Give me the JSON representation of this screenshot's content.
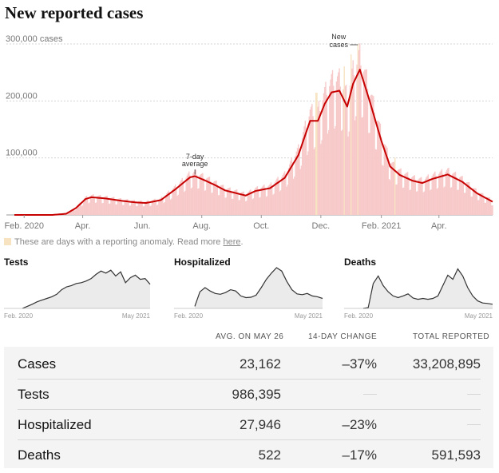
{
  "title": "New reported cases",
  "chart_data": [
    {
      "type": "bar",
      "title": "New reported cases",
      "y_unit_label": "300,000 cases",
      "ylim": [
        0,
        300000
      ],
      "y_ticks": [
        {
          "value": 300000,
          "label": "300,000 cases"
        },
        {
          "value": 200000,
          "label": "200,000"
        },
        {
          "value": 100000,
          "label": "100,000"
        }
      ],
      "x_ticks": [
        "Feb. 2020",
        "Apr.",
        "Jun.",
        "Aug.",
        "Oct.",
        "Dec.",
        "Feb. 2021",
        "Apr."
      ],
      "grid": "horizontal dashed",
      "bar_series_name": "New cases",
      "line_series_name": "7-day average",
      "annotations": {
        "bars": "New cases",
        "line": "7-day average"
      },
      "bar_color": "#f7c9c9",
      "anomaly_color": "#f7e3c0",
      "line_color": "#c70000",
      "seven_day_average": [
        {
          "x": "2020-01-22",
          "y": 0
        },
        {
          "x": "2020-03-01",
          "y": 50
        },
        {
          "x": "2020-03-15",
          "y": 2000
        },
        {
          "x": "2020-03-25",
          "y": 12000
        },
        {
          "x": "2020-04-04",
          "y": 28000
        },
        {
          "x": "2020-04-10",
          "y": 31000
        },
        {
          "x": "2020-04-24",
          "y": 29000
        },
        {
          "x": "2020-05-10",
          "y": 25000
        },
        {
          "x": "2020-05-25",
          "y": 22000
        },
        {
          "x": "2020-06-05",
          "y": 21000
        },
        {
          "x": "2020-06-20",
          "y": 26000
        },
        {
          "x": "2020-07-05",
          "y": 45000
        },
        {
          "x": "2020-07-20",
          "y": 66000
        },
        {
          "x": "2020-07-25",
          "y": 68000
        },
        {
          "x": "2020-08-05",
          "y": 60000
        },
        {
          "x": "2020-08-15",
          "y": 52000
        },
        {
          "x": "2020-08-25",
          "y": 43000
        },
        {
          "x": "2020-09-08",
          "y": 37000
        },
        {
          "x": "2020-09-15",
          "y": 34000
        },
        {
          "x": "2020-09-25",
          "y": 42000
        },
        {
          "x": "2020-10-10",
          "y": 47000
        },
        {
          "x": "2020-10-25",
          "y": 65000
        },
        {
          "x": "2020-11-08",
          "y": 105000
        },
        {
          "x": "2020-11-20",
          "y": 165000
        },
        {
          "x": "2020-11-28",
          "y": 165000
        },
        {
          "x": "2020-12-05",
          "y": 195000
        },
        {
          "x": "2020-12-12",
          "y": 215000
        },
        {
          "x": "2020-12-20",
          "y": 218000
        },
        {
          "x": "2020-12-28",
          "y": 190000
        },
        {
          "x": "2021-01-03",
          "y": 230000
        },
        {
          "x": "2021-01-10",
          "y": 255000
        },
        {
          "x": "2021-01-20",
          "y": 200000
        },
        {
          "x": "2021-02-01",
          "y": 130000
        },
        {
          "x": "2021-02-10",
          "y": 85000
        },
        {
          "x": "2021-02-20",
          "y": 70000
        },
        {
          "x": "2021-03-05",
          "y": 60000
        },
        {
          "x": "2021-03-15",
          "y": 56000
        },
        {
          "x": "2021-03-25",
          "y": 63000
        },
        {
          "x": "2021-04-10",
          "y": 71000
        },
        {
          "x": "2021-04-25",
          "y": 58000
        },
        {
          "x": "2021-05-10",
          "y": 38000
        },
        {
          "x": "2021-05-26",
          "y": 23162
        }
      ]
    },
    {
      "type": "area",
      "title": "Tests",
      "x_ticks": [
        "Feb. 2020",
        "May 2021"
      ],
      "values": [
        0,
        0.05,
        0.1,
        0.16,
        0.2,
        0.24,
        0.28,
        0.34,
        0.45,
        0.52,
        0.55,
        0.6,
        0.62,
        0.66,
        0.72,
        0.82,
        0.9,
        0.85,
        0.92,
        0.78,
        0.88,
        0.62,
        0.74,
        0.8,
        0.7,
        0.72,
        0.58
      ]
    },
    {
      "type": "area",
      "title": "Hospitalized",
      "x_ticks": [
        "Feb. 2020",
        "May 2021"
      ],
      "values": [
        0.05,
        0.4,
        0.5,
        0.42,
        0.36,
        0.34,
        0.38,
        0.45,
        0.42,
        0.3,
        0.26,
        0.27,
        0.32,
        0.5,
        0.7,
        0.85,
        0.98,
        0.9,
        0.65,
        0.45,
        0.35,
        0.33,
        0.36,
        0.3,
        0.28,
        0.24
      ]
    },
    {
      "type": "area",
      "title": "Deaths",
      "x_ticks": [
        "Feb. 2020",
        "May 2021"
      ],
      "values": [
        0,
        0.02,
        0.6,
        0.78,
        0.55,
        0.4,
        0.3,
        0.26,
        0.3,
        0.35,
        0.25,
        0.22,
        0.24,
        0.22,
        0.24,
        0.3,
        0.55,
        0.8,
        0.7,
        0.95,
        0.78,
        0.5,
        0.3,
        0.18,
        0.13,
        0.12,
        0.1
      ]
    }
  ],
  "legend_note": {
    "text": "These are days with a reporting anomaly. Read more ",
    "link": "here",
    "end": "."
  },
  "table": {
    "headers": [
      "AVG. ON MAY 26",
      "14-DAY CHANGE",
      "TOTAL REPORTED"
    ],
    "rows": [
      {
        "label": "Cases",
        "avg": "23,162",
        "change": "–37%",
        "total": "33,208,895"
      },
      {
        "label": "Tests",
        "avg": "986,395",
        "change": "",
        "total": ""
      },
      {
        "label": "Hospitalized",
        "avg": "27,946",
        "change": "–23%",
        "total": ""
      },
      {
        "label": "Deaths",
        "avg": "522",
        "change": "–17%",
        "total": "591,593"
      }
    ]
  }
}
